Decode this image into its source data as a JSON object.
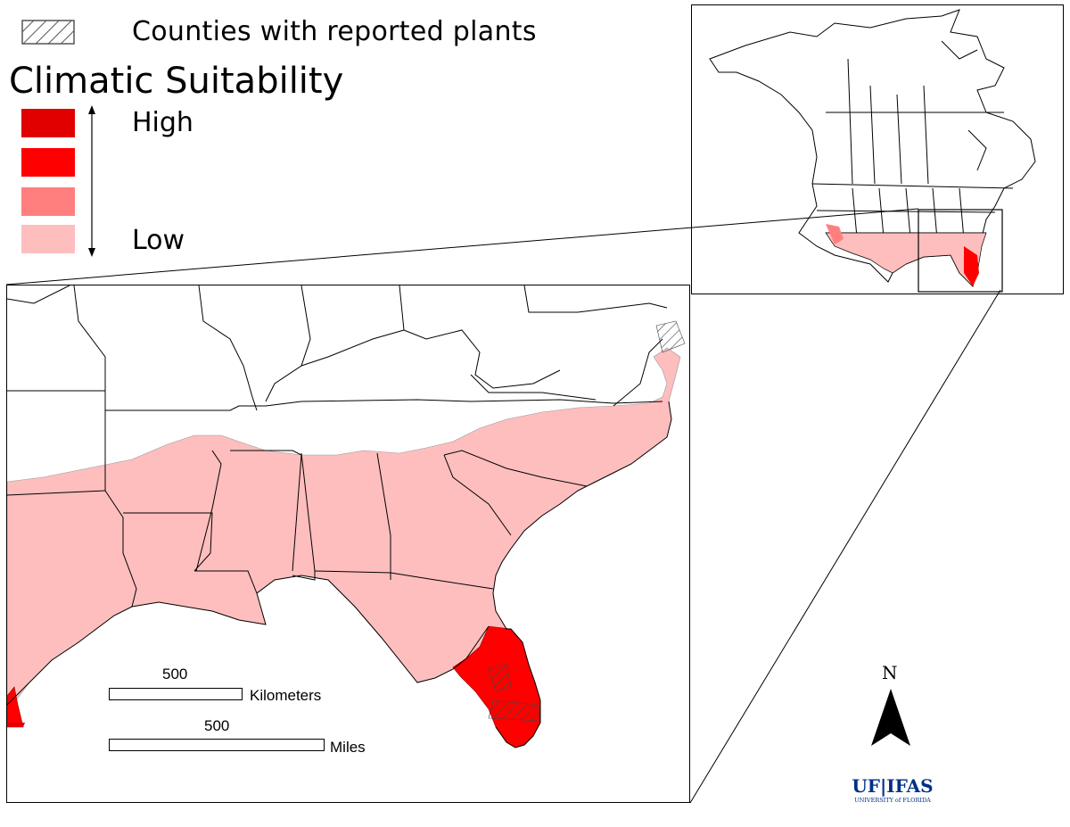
{
  "legend": {
    "hatch_label": "Counties with reported plants",
    "title": "Climatic Suitability",
    "high_label": "High",
    "low_label": "Low",
    "classes": [
      {
        "level": "highest",
        "color": "#e00000"
      },
      {
        "level": "high",
        "color": "#ff0000"
      },
      {
        "level": "medium",
        "color": "#ff7f7f"
      },
      {
        "level": "low",
        "color": "#ffbebe"
      }
    ]
  },
  "scale_bars": {
    "km_value": "500",
    "km_unit": "Kilometers",
    "mi_value": "500",
    "mi_unit": "Miles"
  },
  "north_arrow": {
    "letter": "N"
  },
  "logo": {
    "text_main": "UF|IFAS",
    "text_sub": "UNIVERSITY of FLORIDA",
    "color": "#003087"
  },
  "colors": {
    "low": "#ffbebe",
    "high": "#ff0000",
    "outline": "#000000"
  }
}
